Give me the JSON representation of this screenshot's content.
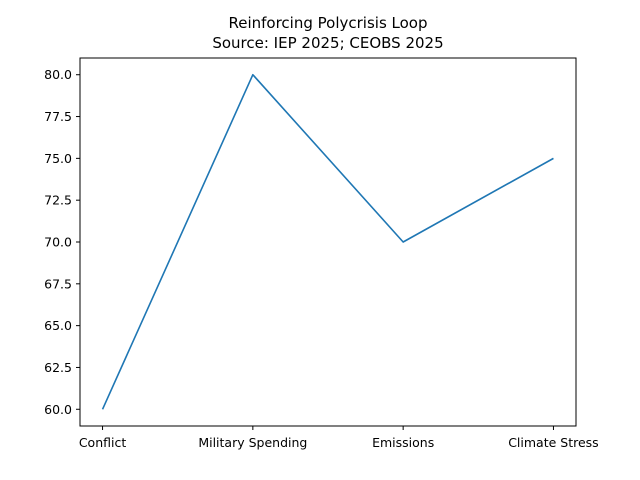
{
  "chart_data": {
    "type": "line",
    "title": "Reinforcing Polycrisis Loop",
    "subtitle": "Source: IEP 2025; CEOBS 2025",
    "xlabel": "",
    "ylabel": "",
    "categories": [
      "Conflict",
      "Military Spending",
      "Emissions",
      "Climate Stress"
    ],
    "series": [
      {
        "values": [
          60,
          80,
          70,
          75
        ],
        "color": "#1f77b4"
      }
    ],
    "ylim": [
      59,
      81
    ],
    "yticks": [
      60.0,
      62.5,
      65.0,
      67.5,
      70.0,
      72.5,
      75.0,
      77.5,
      80.0
    ],
    "grid": false
  }
}
